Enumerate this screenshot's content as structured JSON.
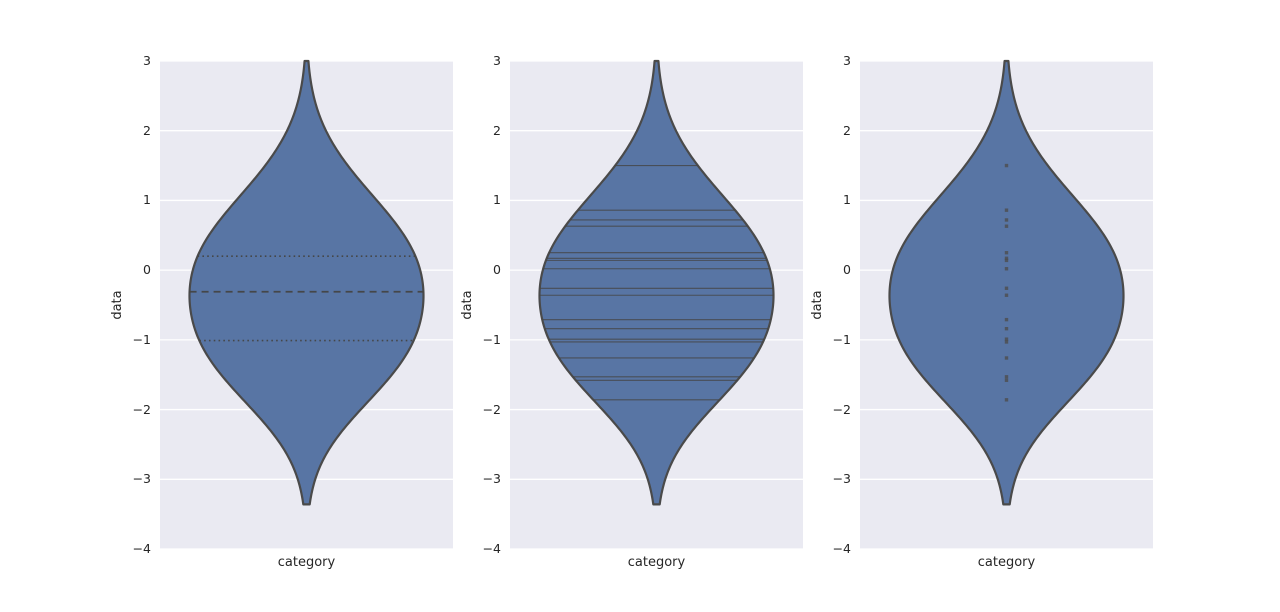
{
  "chart_data": {
    "type": "violin",
    "description": "Three vertical violin plots of the same distribution with different inner annotations",
    "xlabel": "category",
    "ylabel": "data",
    "category": "category",
    "ylim": [
      -4,
      3
    ],
    "ytick_values": [
      3,
      2,
      1,
      0,
      -1,
      -2,
      -3,
      -4
    ],
    "yticks": [
      "3",
      "2",
      "1",
      "0",
      "−1",
      "−2",
      "−3",
      "−4"
    ],
    "grid": "horizontal white gridlines at integer ticks",
    "legend": "none",
    "observations": [
      1.5,
      0.86,
      0.72,
      0.63,
      0.25,
      0.17,
      0.14,
      0.02,
      -0.26,
      -0.36,
      -0.71,
      -0.84,
      -0.99,
      -1.03,
      -1.26,
      -1.53,
      -1.58,
      -1.86
    ],
    "quartiles": {
      "q1": -1.01,
      "median": -0.31,
      "q3": 0.2
    },
    "violin_support": [
      -3.36,
      3.0
    ],
    "kde": {
      "bandwidth": 0.75,
      "cut": 2
    },
    "panels": [
      {
        "inner": "quartile"
      },
      {
        "inner": "stick"
      },
      {
        "inner": "point"
      }
    ]
  },
  "style": {
    "figure_bg": "#ffffff",
    "axes_bg": "#eaeaf2",
    "grid_color": "#ffffff",
    "violin_fill": "#5875a4",
    "violin_edge": "#4a4a4a",
    "inner_line_color": "#454545",
    "point_color": "#4e4e4e",
    "text_color": "#262626"
  }
}
